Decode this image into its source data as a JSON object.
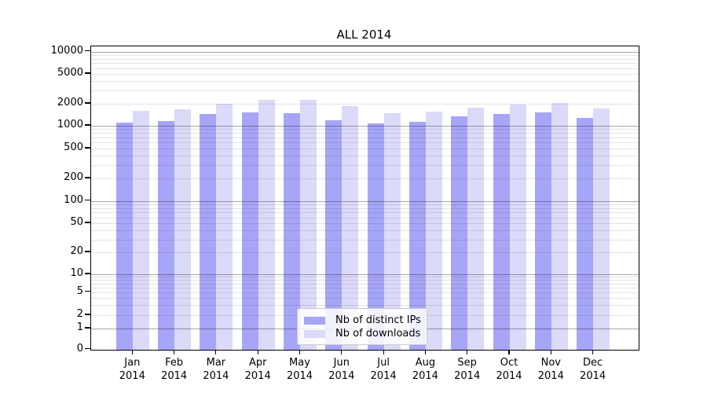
{
  "figure": {
    "background": "#ffffff"
  },
  "chart_data": {
    "type": "bar",
    "title": "ALL 2014",
    "scale": "symlog",
    "grid": "minor+major, drawn over bars",
    "legend_position": "lower center",
    "categories": [
      "Jan",
      "Feb",
      "Mar",
      "Apr",
      "May",
      "Jun",
      "Jul",
      "Aug",
      "Sep",
      "Oct",
      "Nov",
      "Dec"
    ],
    "category_year": "2014",
    "yticks": [
      0,
      1,
      2,
      5,
      10,
      20,
      50,
      100,
      200,
      500,
      1000,
      2000,
      5000,
      10000
    ],
    "ylim": [
      0,
      11500
    ],
    "series": [
      {
        "name": "Nb of distinct IPs",
        "color": "#a7a5f7",
        "values": [
          1100,
          1170,
          1450,
          1540,
          1470,
          1190,
          1080,
          1130,
          1350,
          1460,
          1510,
          1270
        ]
      },
      {
        "name": "Nb of downloads",
        "color": "#dbdaf9",
        "values": [
          1600,
          1670,
          2000,
          2260,
          2250,
          1840,
          1500,
          1550,
          1750,
          1950,
          2050,
          1710
        ]
      }
    ],
    "colors": {
      "spine": "#000000",
      "major_gridline": "#adadad",
      "minor_gridline": "#e6e6e6",
      "legend_border": "#cccccc"
    }
  }
}
